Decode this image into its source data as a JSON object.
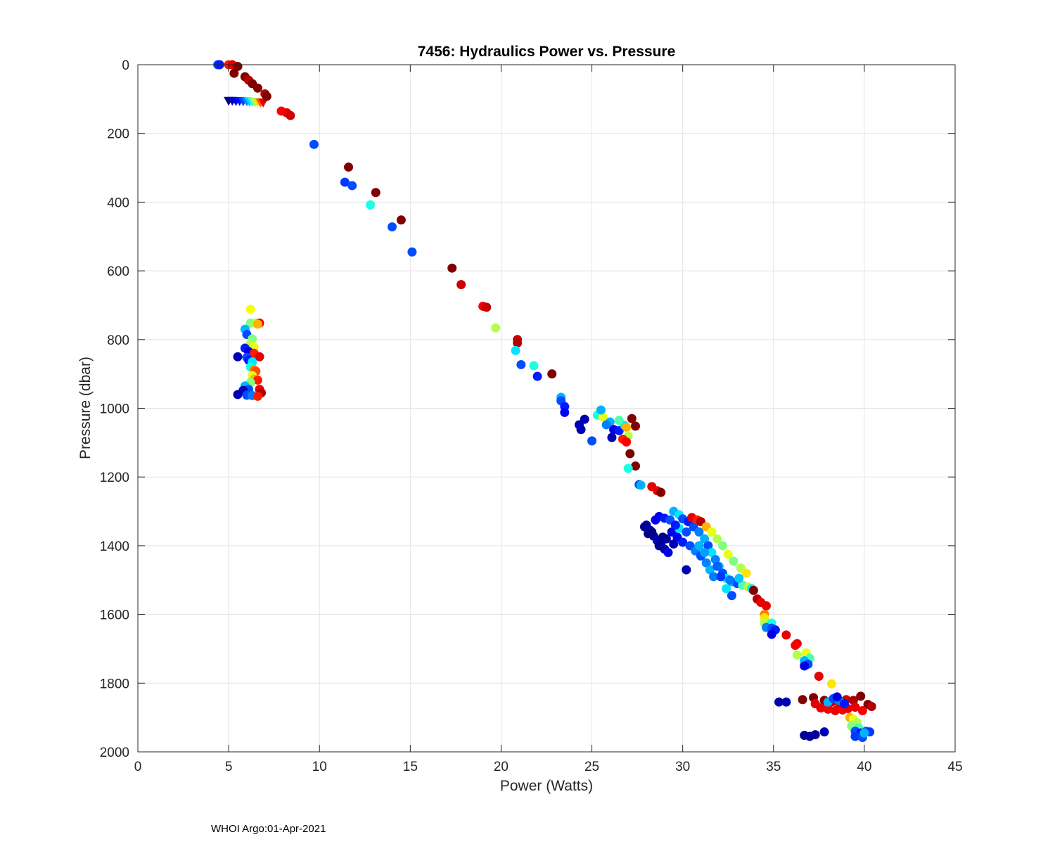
{
  "chart_data": {
    "type": "scatter",
    "title": "7456: Hydraulics Power vs. Pressure",
    "xlabel": "Power (Watts)",
    "ylabel": "Pressure (dbar)",
    "xlim": [
      0,
      45
    ],
    "ylim": [
      0,
      2000
    ],
    "y_reversed": true,
    "xticks": [
      0,
      5,
      10,
      15,
      20,
      25,
      30,
      35,
      40,
      45
    ],
    "yticks": [
      0,
      200,
      400,
      600,
      800,
      1000,
      1200,
      1400,
      1600,
      1800,
      2000
    ],
    "grid": true,
    "colormap": "jet",
    "colormap_stops": [
      "#000080",
      "#0000ff",
      "#0080ff",
      "#00ffff",
      "#80ff80",
      "#ffff00",
      "#ff8000",
      "#ff0000",
      "#800000"
    ],
    "footer": "WHOI Argo:01-Apr-2021",
    "triangle_markers": [
      [
        5.0,
        105,
        0.0
      ],
      [
        5.2,
        105,
        0.05
      ],
      [
        5.4,
        106,
        0.1
      ],
      [
        5.6,
        106,
        0.14
      ],
      [
        5.8,
        107,
        0.2
      ],
      [
        6.0,
        107,
        0.26
      ],
      [
        6.15,
        108,
        0.33
      ],
      [
        6.3,
        108,
        0.42
      ],
      [
        6.45,
        109,
        0.55
      ],
      [
        6.6,
        109,
        0.66
      ],
      [
        6.75,
        110,
        0.78
      ],
      [
        6.9,
        110,
        0.9
      ]
    ],
    "points": [
      [
        4.4,
        0,
        0.2
      ],
      [
        4.5,
        0,
        0.15
      ],
      [
        5.0,
        0,
        0.85
      ],
      [
        5.2,
        0,
        0.9
      ],
      [
        5.5,
        5,
        1.0
      ],
      [
        5.3,
        25,
        1.0
      ],
      [
        5.9,
        35,
        1.0
      ],
      [
        6.1,
        45,
        0.95
      ],
      [
        6.3,
        55,
        1.0
      ],
      [
        6.6,
        68,
        1.0
      ],
      [
        7.0,
        85,
        0.95
      ],
      [
        7.1,
        92,
        1.0
      ],
      [
        7.9,
        135,
        0.88
      ],
      [
        8.2,
        140,
        0.9
      ],
      [
        8.4,
        148,
        0.92
      ],
      [
        9.7,
        232,
        0.2
      ],
      [
        11.6,
        298,
        1.0
      ],
      [
        11.4,
        342,
        0.18
      ],
      [
        11.8,
        352,
        0.2
      ],
      [
        13.1,
        372,
        1.0
      ],
      [
        12.8,
        408,
        0.4
      ],
      [
        14.5,
        452,
        1.0
      ],
      [
        14.0,
        472,
        0.2
      ],
      [
        15.1,
        545,
        0.2
      ],
      [
        17.3,
        592,
        1.0
      ],
      [
        17.8,
        640,
        0.92
      ],
      [
        19.0,
        703,
        0.88
      ],
      [
        19.2,
        706,
        0.93
      ],
      [
        19.7,
        766,
        0.55
      ],
      [
        20.9,
        800,
        0.93
      ],
      [
        20.9,
        810,
        0.95
      ],
      [
        20.8,
        832,
        0.35
      ],
      [
        21.1,
        873,
        0.2
      ],
      [
        21.8,
        876,
        0.4
      ],
      [
        22.0,
        907,
        0.15
      ],
      [
        22.8,
        900,
        1.0
      ],
      [
        23.3,
        968,
        0.3
      ],
      [
        23.3,
        978,
        0.2
      ],
      [
        23.5,
        995,
        0.15
      ],
      [
        23.5,
        1012,
        0.12
      ],
      [
        24.3,
        1048,
        0.05
      ],
      [
        24.4,
        1062,
        0.05
      ],
      [
        24.6,
        1032,
        0.05
      ],
      [
        25.0,
        1095,
        0.2
      ],
      [
        25.3,
        1020,
        0.4
      ],
      [
        25.6,
        1025,
        0.6
      ],
      [
        26.0,
        1040,
        0.3
      ],
      [
        26.2,
        1062,
        0.1
      ],
      [
        26.5,
        1065,
        0.15
      ],
      [
        26.8,
        1050,
        0.35
      ],
      [
        26.9,
        1055,
        0.7
      ],
      [
        27.0,
        1080,
        0.55
      ],
      [
        27.2,
        1030,
        1.0
      ],
      [
        27.4,
        1052,
        1.0
      ],
      [
        26.7,
        1090,
        0.85
      ],
      [
        26.9,
        1098,
        0.88
      ],
      [
        25.8,
        1048,
        0.25
      ],
      [
        26.1,
        1085,
        0.05
      ],
      [
        26.5,
        1035,
        0.45
      ],
      [
        25.5,
        1005,
        0.3
      ],
      [
        27.1,
        1132,
        1.0
      ],
      [
        27.4,
        1168,
        1.0
      ],
      [
        27.0,
        1175,
        0.4
      ],
      [
        27.6,
        1222,
        0.2
      ],
      [
        27.7,
        1224,
        0.3
      ],
      [
        28.3,
        1228,
        0.9
      ],
      [
        28.6,
        1240,
        0.9
      ],
      [
        28.8,
        1245,
        1.0
      ],
      [
        28.0,
        1340,
        0.05
      ],
      [
        28.2,
        1355,
        0.05
      ],
      [
        28.4,
        1372,
        0.02
      ],
      [
        28.6,
        1385,
        0.05
      ],
      [
        28.8,
        1395,
        0.08
      ],
      [
        29.0,
        1410,
        0.05
      ],
      [
        29.2,
        1420,
        0.1
      ],
      [
        28.5,
        1325,
        0.1
      ],
      [
        28.7,
        1315,
        0.12
      ],
      [
        29.0,
        1320,
        0.15
      ],
      [
        29.3,
        1325,
        0.2
      ],
      [
        29.5,
        1300,
        0.3
      ],
      [
        29.8,
        1310,
        0.35
      ],
      [
        30.0,
        1322,
        0.2
      ],
      [
        30.3,
        1330,
        0.15
      ],
      [
        30.6,
        1345,
        0.2
      ],
      [
        30.9,
        1360,
        0.25
      ],
      [
        31.2,
        1380,
        0.3
      ],
      [
        31.4,
        1400,
        0.2
      ],
      [
        31.6,
        1420,
        0.35
      ],
      [
        31.8,
        1440,
        0.25
      ],
      [
        32.0,
        1460,
        0.3
      ],
      [
        32.2,
        1480,
        0.2
      ],
      [
        32.4,
        1495,
        0.35
      ],
      [
        32.7,
        1505,
        0.3
      ],
      [
        33.0,
        1510,
        0.2
      ],
      [
        33.3,
        1515,
        0.45
      ],
      [
        33.6,
        1520,
        0.55
      ],
      [
        33.8,
        1525,
        0.35
      ],
      [
        30.5,
        1318,
        0.9
      ],
      [
        30.8,
        1325,
        0.85
      ],
      [
        31.0,
        1330,
        0.95
      ],
      [
        31.3,
        1345,
        0.7
      ],
      [
        31.6,
        1360,
        0.6
      ],
      [
        31.9,
        1380,
        0.55
      ],
      [
        32.2,
        1400,
        0.5
      ],
      [
        32.5,
        1425,
        0.6
      ],
      [
        32.8,
        1445,
        0.5
      ],
      [
        33.2,
        1465,
        0.55
      ],
      [
        33.5,
        1480,
        0.65
      ],
      [
        30.2,
        1470,
        0.05
      ],
      [
        32.7,
        1545,
        0.2
      ],
      [
        32.4,
        1525,
        0.35
      ],
      [
        29.4,
        1360,
        0.1
      ],
      [
        29.7,
        1375,
        0.12
      ],
      [
        30.0,
        1390,
        0.15
      ],
      [
        30.4,
        1400,
        0.2
      ],
      [
        30.7,
        1415,
        0.25
      ],
      [
        31.0,
        1430,
        0.2
      ],
      [
        31.3,
        1450,
        0.25
      ],
      [
        31.5,
        1470,
        0.3
      ],
      [
        31.7,
        1490,
        0.25
      ],
      [
        29.8,
        1350,
        0.35
      ],
      [
        28.3,
        1360,
        0.0
      ],
      [
        28.9,
        1375,
        0.0
      ],
      [
        29.5,
        1395,
        0.05
      ],
      [
        28.7,
        1400,
        0.02
      ],
      [
        29.1,
        1380,
        0.03
      ],
      [
        29.6,
        1340,
        0.15
      ],
      [
        30.2,
        1360,
        0.2
      ],
      [
        30.9,
        1400,
        0.3
      ],
      [
        31.2,
        1420,
        0.28
      ],
      [
        31.9,
        1460,
        0.22
      ],
      [
        32.1,
        1490,
        0.18
      ],
      [
        32.6,
        1500,
        0.24
      ],
      [
        33.1,
        1495,
        0.32
      ],
      [
        27.9,
        1345,
        0.02
      ],
      [
        28.1,
        1365,
        0.01
      ],
      [
        33.9,
        1530,
        1.0
      ],
      [
        34.1,
        1555,
        0.95
      ],
      [
        34.3,
        1565,
        0.9
      ],
      [
        34.6,
        1575,
        0.9
      ],
      [
        34.5,
        1600,
        0.75
      ],
      [
        34.5,
        1610,
        0.65
      ],
      [
        34.5,
        1625,
        0.55
      ],
      [
        34.9,
        1625,
        0.4
      ],
      [
        34.6,
        1638,
        0.25
      ],
      [
        34.9,
        1640,
        0.2
      ],
      [
        35.1,
        1645,
        0.15
      ],
      [
        34.9,
        1658,
        0.1
      ],
      [
        35.7,
        1660,
        0.9
      ],
      [
        36.3,
        1685,
        0.9
      ],
      [
        36.2,
        1690,
        0.88
      ],
      [
        36.3,
        1718,
        0.55
      ],
      [
        36.8,
        1712,
        0.6
      ],
      [
        37.0,
        1728,
        0.45
      ],
      [
        36.7,
        1735,
        0.3
      ],
      [
        36.9,
        1745,
        0.2
      ],
      [
        36.7,
        1750,
        0.1
      ],
      [
        37.5,
        1780,
        0.9
      ],
      [
        38.2,
        1802,
        0.65
      ],
      [
        35.3,
        1855,
        0.05
      ],
      [
        35.7,
        1855,
        0.05
      ],
      [
        36.6,
        1848,
        1.0
      ],
      [
        37.2,
        1842,
        1.0
      ],
      [
        37.8,
        1850,
        1.0
      ],
      [
        38.2,
        1855,
        0.95
      ],
      [
        38.6,
        1858,
        0.9
      ],
      [
        39.0,
        1848,
        0.92
      ],
      [
        39.4,
        1850,
        0.95
      ],
      [
        39.8,
        1838,
        1.0
      ],
      [
        40.2,
        1862,
        1.0
      ],
      [
        40.4,
        1868,
        0.95
      ],
      [
        37.3,
        1860,
        0.9
      ],
      [
        37.6,
        1872,
        0.9
      ],
      [
        38.0,
        1876,
        0.88
      ],
      [
        38.4,
        1880,
        0.9
      ],
      [
        38.8,
        1878,
        0.88
      ],
      [
        39.1,
        1874,
        0.9
      ],
      [
        39.5,
        1870,
        0.9
      ],
      [
        39.9,
        1880,
        0.88
      ],
      [
        38.0,
        1855,
        0.3
      ],
      [
        38.3,
        1845,
        0.2
      ],
      [
        38.6,
        1850,
        0.25
      ],
      [
        38.9,
        1860,
        0.15
      ],
      [
        38.5,
        1840,
        0.1
      ],
      [
        39.2,
        1900,
        0.7
      ],
      [
        39.4,
        1905,
        0.6
      ],
      [
        39.6,
        1915,
        0.55
      ],
      [
        39.3,
        1925,
        0.5
      ],
      [
        39.7,
        1930,
        0.45
      ],
      [
        39.5,
        1940,
        0.2
      ],
      [
        39.8,
        1945,
        0.15
      ],
      [
        40.1,
        1940,
        0.2
      ],
      [
        40.3,
        1942,
        0.18
      ],
      [
        39.5,
        1955,
        0.18
      ],
      [
        39.9,
        1958,
        0.2
      ],
      [
        40.0,
        1945,
        0.3
      ],
      [
        36.7,
        1952,
        0.02
      ],
      [
        37.0,
        1955,
        0.03
      ],
      [
        37.3,
        1950,
        0.02
      ],
      [
        37.8,
        1942,
        0.05
      ],
      [
        6.2,
        712,
        0.62
      ],
      [
        6.2,
        752,
        0.5
      ],
      [
        6.5,
        752,
        0.55
      ],
      [
        6.7,
        752,
        0.9
      ],
      [
        6.6,
        755,
        0.7
      ],
      [
        5.9,
        770,
        0.3
      ],
      [
        6.0,
        785,
        0.2
      ],
      [
        6.3,
        798,
        0.5
      ],
      [
        6.2,
        812,
        0.55
      ],
      [
        6.4,
        822,
        0.6
      ],
      [
        5.9,
        825,
        0.15
      ],
      [
        6.1,
        835,
        0.1
      ],
      [
        6.4,
        840,
        0.85
      ],
      [
        6.7,
        850,
        0.9
      ],
      [
        5.5,
        850,
        0.05
      ],
      [
        6.0,
        852,
        0.2
      ],
      [
        6.1,
        860,
        0.15
      ],
      [
        6.3,
        865,
        0.35
      ],
      [
        6.2,
        880,
        0.4
      ],
      [
        6.4,
        888,
        0.75
      ],
      [
        6.5,
        892,
        0.8
      ],
      [
        6.3,
        905,
        0.6
      ],
      [
        6.4,
        915,
        0.7
      ],
      [
        6.6,
        918,
        0.85
      ],
      [
        6.2,
        925,
        0.5
      ],
      [
        5.9,
        935,
        0.3
      ],
      [
        6.1,
        945,
        0.2
      ],
      [
        5.8,
        948,
        0.05
      ],
      [
        6.7,
        945,
        0.9
      ],
      [
        6.8,
        955,
        0.95
      ],
      [
        5.5,
        960,
        0.05
      ],
      [
        6.0,
        962,
        0.2
      ],
      [
        6.3,
        963,
        0.25
      ],
      [
        6.6,
        965,
        0.85
      ]
    ]
  }
}
